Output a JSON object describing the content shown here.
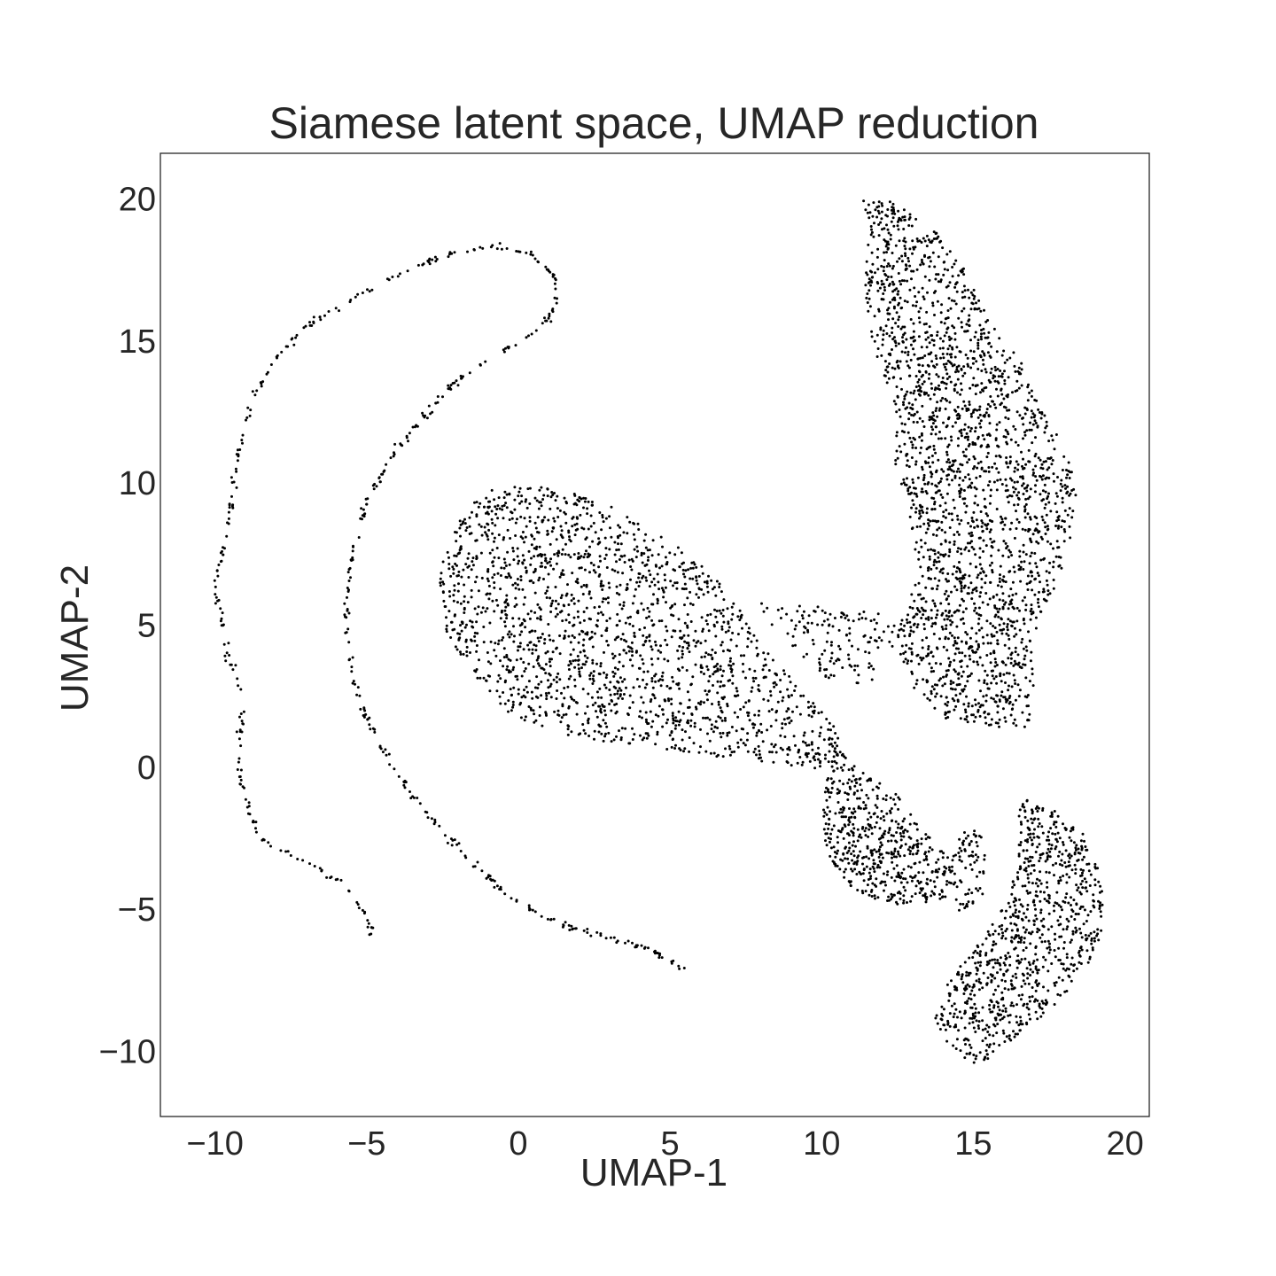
{
  "chart_data": {
    "type": "scatter",
    "title": "Siamese latent space, UMAP reduction",
    "xlabel": "UMAP-1",
    "ylabel": "UMAP-2",
    "xlim": [
      -11.8,
      20.8
    ],
    "ylim": [
      -12.2,
      21.7
    ],
    "xticks": [
      -10,
      -5,
      0,
      5,
      10,
      15,
      20
    ],
    "yticks": [
      -10,
      -5,
      0,
      5,
      10,
      15,
      20
    ],
    "xtick_labels": [
      "−10",
      "−5",
      "0",
      "5",
      "10",
      "15",
      "20"
    ],
    "ytick_labels": [
      "−10",
      "−5",
      "0",
      "5",
      "10",
      "15",
      "20"
    ],
    "grid": false,
    "marker_color": "#000000",
    "series": [
      {
        "shape": "curve",
        "path": [
          [
            -4.8,
            -5.8
          ],
          [
            -5.1,
            -5.0
          ],
          [
            -5.6,
            -4.2
          ],
          [
            -7.0,
            -3.2
          ],
          [
            -8.4,
            -2.5
          ],
          [
            -8.9,
            -1.5
          ],
          [
            -9.2,
            0.0
          ],
          [
            -9.2,
            1.2
          ],
          [
            -9.0,
            2.6
          ],
          [
            -9.6,
            4.0
          ],
          [
            -9.8,
            5.3
          ],
          [
            -10.0,
            6.5
          ],
          [
            -9.7,
            7.8
          ],
          [
            -9.5,
            9.0
          ],
          [
            -9.3,
            10.8
          ],
          [
            -9.0,
            12.2
          ],
          [
            -8.7,
            13.2
          ],
          [
            -8.2,
            14.2
          ],
          [
            -7.6,
            15.0
          ],
          [
            -6.6,
            15.9
          ],
          [
            -5.3,
            16.7
          ],
          [
            -3.8,
            17.5
          ],
          [
            -2.2,
            18.2
          ],
          [
            -1.0,
            18.4
          ],
          [
            0.4,
            18.2
          ],
          [
            1.2,
            17.4
          ],
          [
            1.3,
            16.3
          ],
          [
            0.6,
            15.4
          ],
          [
            -0.8,
            14.6
          ],
          [
            -2.2,
            13.5
          ],
          [
            -3.3,
            12.2
          ],
          [
            -4.2,
            11.0
          ],
          [
            -5.0,
            9.5
          ],
          [
            -5.5,
            7.5
          ],
          [
            -5.7,
            5.5
          ],
          [
            -5.5,
            3.5
          ],
          [
            -5.0,
            1.8
          ],
          [
            -4.2,
            0.2
          ],
          [
            -3.2,
            -1.3
          ],
          [
            -1.8,
            -3.0
          ],
          [
            -0.3,
            -4.5
          ],
          [
            1.3,
            -5.4
          ],
          [
            3.0,
            -5.9
          ],
          [
            4.3,
            -6.3
          ],
          [
            5.6,
            -7.1
          ]
        ],
        "count": 520,
        "spread": 0.05
      },
      {
        "shape": "blob",
        "outline": [
          [
            -2.5,
            5.0
          ],
          [
            -2.6,
            7.0
          ],
          [
            -2.1,
            8.6
          ],
          [
            -1.2,
            9.9
          ],
          [
            0.5,
            10.0
          ],
          [
            2.5,
            9.6
          ],
          [
            4.2,
            8.6
          ],
          [
            5.6,
            7.6
          ],
          [
            7.0,
            6.3
          ],
          [
            7.9,
            4.5
          ],
          [
            9.2,
            3.0
          ],
          [
            10.4,
            1.7
          ],
          [
            10.8,
            0.3
          ],
          [
            9.8,
            0.0
          ],
          [
            8.0,
            0.3
          ],
          [
            6.5,
            0.4
          ],
          [
            4.5,
            0.8
          ],
          [
            2.0,
            1.1
          ],
          [
            -0.3,
            1.9
          ],
          [
            -1.2,
            3.0
          ],
          [
            -2.0,
            4.2
          ]
        ],
        "count": 1850
      },
      {
        "shape": "blob",
        "outline": [
          [
            8.0,
            5.9
          ],
          [
            9.5,
            5.8
          ],
          [
            11.5,
            5.6
          ],
          [
            12.8,
            5.3
          ],
          [
            12.5,
            4.0
          ],
          [
            11.5,
            3.0
          ],
          [
            10.2,
            3.2
          ],
          [
            9.0,
            4.3
          ],
          [
            8.2,
            5.2
          ]
        ],
        "count": 140
      },
      {
        "shape": "blob",
        "outline": [
          [
            11.3,
            20.2
          ],
          [
            12.4,
            20.0
          ],
          [
            13.7,
            19.0
          ],
          [
            14.4,
            18.2
          ],
          [
            15.5,
            16.0
          ],
          [
            16.4,
            14.8
          ],
          [
            17.2,
            12.7
          ],
          [
            18.0,
            11.5
          ],
          [
            18.4,
            10.0
          ],
          [
            18.3,
            8.5
          ],
          [
            17.6,
            6.0
          ],
          [
            16.9,
            4.6
          ],
          [
            17.0,
            3.0
          ],
          [
            16.8,
            1.5
          ],
          [
            15.8,
            1.5
          ],
          [
            14.0,
            1.8
          ],
          [
            12.9,
            3.0
          ],
          [
            12.4,
            4.5
          ],
          [
            12.7,
            5.4
          ],
          [
            13.2,
            7.0
          ],
          [
            12.8,
            9.5
          ],
          [
            12.3,
            11.0
          ],
          [
            12.5,
            12.5
          ],
          [
            11.8,
            14.5
          ],
          [
            11.4,
            16.5
          ],
          [
            11.5,
            18.5
          ]
        ],
        "count": 2250
      },
      {
        "shape": "blob",
        "outline": [
          [
            10.3,
            1.1
          ],
          [
            11.2,
            0.0
          ],
          [
            12.5,
            -0.8
          ],
          [
            13.2,
            -2.0
          ],
          [
            14.4,
            -3.0
          ],
          [
            14.2,
            -4.5
          ],
          [
            12.8,
            -4.8
          ],
          [
            11.2,
            -4.4
          ],
          [
            10.2,
            -3.2
          ],
          [
            10.0,
            -1.5
          ],
          [
            10.2,
            0.1
          ]
        ],
        "count": 540
      },
      {
        "shape": "blob",
        "outline": [
          [
            16.5,
            -0.8
          ],
          [
            17.5,
            -1.3
          ],
          [
            18.7,
            -2.3
          ],
          [
            19.3,
            -4.0
          ],
          [
            19.2,
            -6.0
          ],
          [
            18.6,
            -7.2
          ],
          [
            17.8,
            -8.2
          ],
          [
            16.5,
            -9.3
          ],
          [
            15.2,
            -10.4
          ],
          [
            14.3,
            -10.0
          ],
          [
            13.7,
            -8.9
          ],
          [
            14.2,
            -7.4
          ],
          [
            15.2,
            -6.1
          ],
          [
            16.0,
            -4.8
          ],
          [
            16.5,
            -3.2
          ]
        ],
        "count": 880
      },
      {
        "shape": "blob",
        "outline": [
          [
            14.6,
            -2.0
          ],
          [
            15.2,
            -2.1
          ],
          [
            15.5,
            -3.4
          ],
          [
            15.3,
            -4.5
          ],
          [
            14.5,
            -5.2
          ],
          [
            14.2,
            -3.8
          ]
        ],
        "count": 70
      }
    ]
  }
}
